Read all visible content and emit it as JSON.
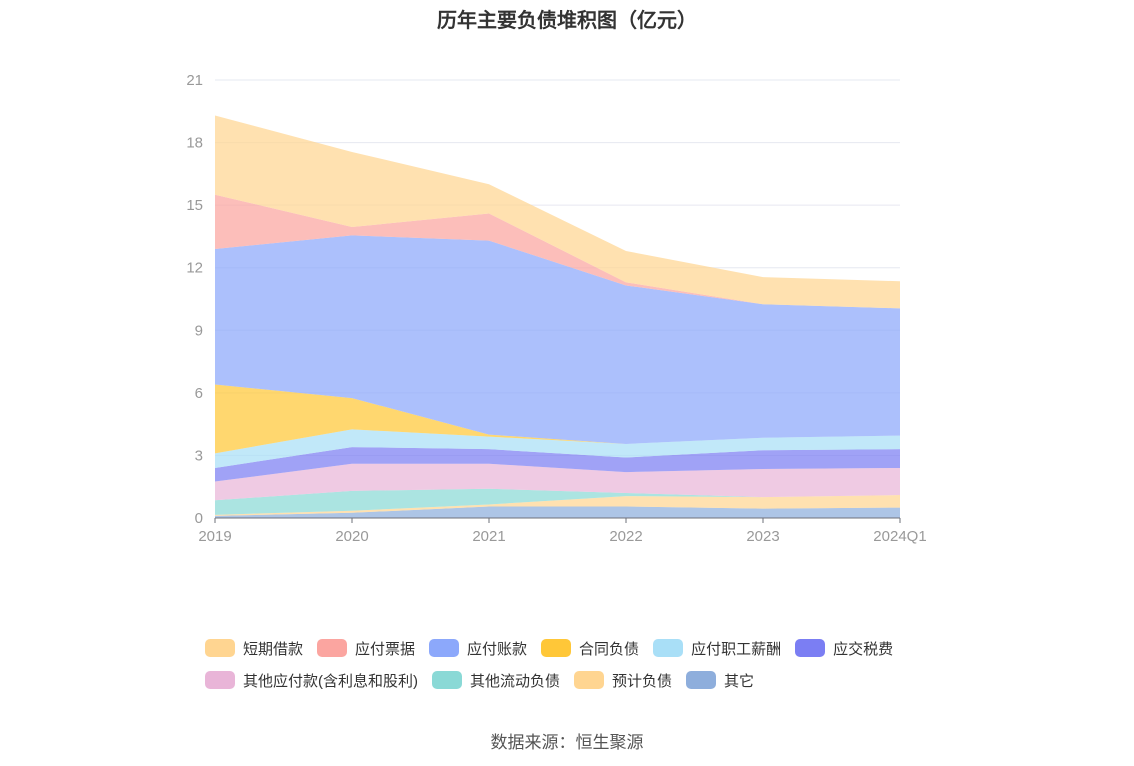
{
  "title": "历年主要负债堆积图（亿元）",
  "source": "数据来源：恒生聚源",
  "chart_data": {
    "type": "area",
    "stacked": true,
    "categories": [
      "2019",
      "2020",
      "2021",
      "2022",
      "2023",
      "2024Q1"
    ],
    "ylim": [
      0,
      21
    ],
    "yticks": [
      0,
      3,
      6,
      9,
      12,
      15,
      18,
      21
    ],
    "grid": true,
    "legend_position": "bottom",
    "series": [
      {
        "name": "其它",
        "color": "#8eaedc",
        "values": [
          0.1,
          0.25,
          0.55,
          0.55,
          0.45,
          0.5
        ]
      },
      {
        "name": "预计负债",
        "color": "#ffd591",
        "values": [
          0.05,
          0.1,
          0.1,
          0.5,
          0.55,
          0.6
        ]
      },
      {
        "name": "其他流动负债",
        "color": "#8ad9d6",
        "values": [
          0.7,
          0.95,
          0.75,
          0.15,
          0.0,
          0.0
        ]
      },
      {
        "name": "其他应付款(含利息和股利)",
        "color": "#e9b5d8",
        "values": [
          0.9,
          1.3,
          1.2,
          1.0,
          1.35,
          1.3
        ]
      },
      {
        "name": "应交税费",
        "color": "#7b7ef3",
        "values": [
          0.65,
          0.8,
          0.7,
          0.7,
          0.9,
          0.9
        ]
      },
      {
        "name": "应付职工薪酬",
        "color": "#a9dff7",
        "values": [
          0.7,
          0.85,
          0.6,
          0.65,
          0.6,
          0.65
        ]
      },
      {
        "name": "合同负债",
        "color": "#ffc738",
        "values": [
          3.3,
          1.5,
          0.1,
          0.0,
          0.0,
          0.0
        ]
      },
      {
        "name": "应付账款",
        "color": "#8ca8fb",
        "values": [
          6.5,
          7.8,
          9.3,
          7.6,
          6.4,
          6.1
        ]
      },
      {
        "name": "应付票据",
        "color": "#fba5a0",
        "values": [
          2.6,
          0.4,
          1.3,
          0.15,
          0.0,
          0.0
        ]
      },
      {
        "name": "短期借款",
        "color": "#ffd591",
        "values": [
          3.8,
          3.6,
          1.4,
          1.5,
          1.3,
          1.3
        ]
      }
    ]
  },
  "legend": {
    "row1": [
      {
        "name": "短期借款",
        "color": "#ffd591"
      },
      {
        "name": "应付票据",
        "color": "#fba5a0"
      },
      {
        "name": "应付账款",
        "color": "#8ca8fb"
      },
      {
        "name": "合同负债",
        "color": "#ffc738"
      },
      {
        "name": "应付职工薪酬",
        "color": "#a9dff7"
      },
      {
        "name": "应交税费",
        "color": "#7b7ef3"
      }
    ],
    "row2": [
      {
        "name": "其他应付款(含利息和股利)",
        "color": "#e9b5d8"
      },
      {
        "name": "其他流动负债",
        "color": "#8ad9d6"
      },
      {
        "name": "预计负债",
        "color": "#ffd591"
      },
      {
        "name": "其它",
        "color": "#8eaedc"
      }
    ]
  }
}
